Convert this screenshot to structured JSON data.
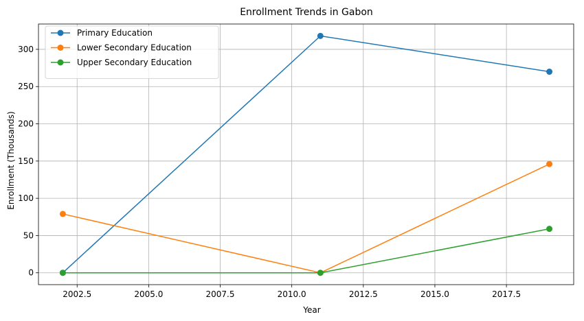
{
  "chart_data": {
    "type": "line",
    "title": "Enrollment Trends in Gabon",
    "xlabel": "Year",
    "ylabel": "Enrollment (Thousands)",
    "xlim": [
      2001.15,
      2019.85
    ],
    "ylim": [
      -15.9,
      334.0
    ],
    "x": [
      2002,
      2011,
      2019
    ],
    "xticks": [
      2002.5,
      2005.0,
      2007.5,
      2010.0,
      2012.5,
      2015.0,
      2017.5
    ],
    "xtick_labels": [
      "2002.5",
      "2005.0",
      "2007.5",
      "2010.0",
      "2012.5",
      "2015.0",
      "2017.5"
    ],
    "yticks": [
      0,
      50,
      100,
      150,
      200,
      250,
      300
    ],
    "ytick_labels": [
      "0",
      "50",
      "100",
      "150",
      "200",
      "250",
      "300"
    ],
    "grid": true,
    "legend_position": "top-left",
    "series": [
      {
        "name": "Primary Education",
        "color": "#1f77b4",
        "values": [
          0,
          318,
          270
        ]
      },
      {
        "name": "Lower Secondary Education",
        "color": "#ff7f0e",
        "values": [
          79,
          0,
          146
        ]
      },
      {
        "name": "Upper Secondary Education",
        "color": "#2ca02c",
        "values": [
          0,
          0,
          59
        ]
      }
    ]
  }
}
